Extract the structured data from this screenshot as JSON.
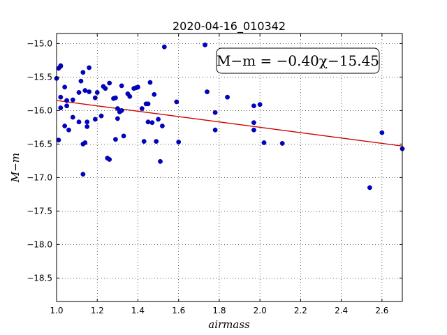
{
  "chart_data": {
    "type": "scatter",
    "title": "2020-04-16_010342",
    "xlabel": "airmass",
    "ylabel": "M−m",
    "xlim": [
      1.0,
      2.7
    ],
    "ylim": [
      -18.85,
      -14.85
    ],
    "xticks": [
      1.0,
      1.2,
      1.4,
      1.6,
      1.8,
      2.0,
      2.2,
      2.4,
      2.6
    ],
    "xtick_labels": [
      "1.0",
      "1.2",
      "1.4",
      "1.6",
      "1.8",
      "2.0",
      "2.2",
      "2.4",
      "2.6"
    ],
    "yticks": [
      -15.0,
      -15.5,
      -16.0,
      -16.5,
      -17.0,
      -17.5,
      -18.0,
      -18.5
    ],
    "ytick_labels": [
      "−15.0",
      "−15.5",
      "−16.0",
      "−16.5",
      "−17.0",
      "−17.5",
      "−18.0",
      "−18.5"
    ],
    "grid": true,
    "annotation": "M−m = −0.40χ−15.45",
    "fit": {
      "slope": -0.4,
      "intercept": -15.45,
      "color": "#cc0000"
    },
    "point_color": "#0000cc",
    "points": [
      [
        1.0,
        -15.52
      ],
      [
        1.01,
        -15.37
      ],
      [
        1.01,
        -16.44
      ],
      [
        1.02,
        -15.34
      ],
      [
        1.02,
        -15.33
      ],
      [
        1.02,
        -15.8
      ],
      [
        1.02,
        -15.96
      ],
      [
        1.04,
        -15.65
      ],
      [
        1.04,
        -16.23
      ],
      [
        1.05,
        -15.85
      ],
      [
        1.05,
        -15.93
      ],
      [
        1.06,
        -16.29
      ],
      [
        1.08,
        -15.84
      ],
      [
        1.08,
        -16.1
      ],
      [
        1.11,
        -15.73
      ],
      [
        1.11,
        -16.17
      ],
      [
        1.12,
        -15.56
      ],
      [
        1.13,
        -15.43
      ],
      [
        1.13,
        -16.5
      ],
      [
        1.13,
        -16.95
      ],
      [
        1.14,
        -15.7
      ],
      [
        1.14,
        -16.48
      ],
      [
        1.15,
        -16.17
      ],
      [
        1.15,
        -16.24
      ],
      [
        1.16,
        -15.36
      ],
      [
        1.16,
        -15.72
      ],
      [
        1.19,
        -15.81
      ],
      [
        1.19,
        -16.13
      ],
      [
        1.2,
        -15.73
      ],
      [
        1.22,
        -16.08
      ],
      [
        1.23,
        -15.64
      ],
      [
        1.24,
        -15.67
      ],
      [
        1.25,
        -16.71
      ],
      [
        1.26,
        -15.59
      ],
      [
        1.26,
        -16.73
      ],
      [
        1.28,
        -15.82
      ],
      [
        1.29,
        -15.81
      ],
      [
        1.29,
        -16.43
      ],
      [
        1.3,
        -16.12
      ],
      [
        1.3,
        -15.97
      ],
      [
        1.31,
        -16.02
      ],
      [
        1.32,
        -16.0
      ],
      [
        1.32,
        -15.63
      ],
      [
        1.33,
        -16.38
      ],
      [
        1.35,
        -15.75
      ],
      [
        1.36,
        -15.79
      ],
      [
        1.38,
        -15.67
      ],
      [
        1.39,
        -15.66
      ],
      [
        1.4,
        -15.65
      ],
      [
        1.42,
        -15.97
      ],
      [
        1.43,
        -16.46
      ],
      [
        1.44,
        -15.9
      ],
      [
        1.45,
        -15.9
      ],
      [
        1.45,
        -16.17
      ],
      [
        1.46,
        -15.58
      ],
      [
        1.47,
        -16.18
      ],
      [
        1.48,
        -15.76
      ],
      [
        1.49,
        -16.46
      ],
      [
        1.5,
        -16.13
      ],
      [
        1.51,
        -16.76
      ],
      [
        1.52,
        -16.23
      ],
      [
        1.53,
        -15.05
      ],
      [
        1.59,
        -15.87
      ],
      [
        1.6,
        -16.47
      ],
      [
        1.73,
        -15.02
      ],
      [
        1.74,
        -15.72
      ],
      [
        1.78,
        -16.03
      ],
      [
        1.78,
        -16.29
      ],
      [
        1.84,
        -15.8
      ],
      [
        1.97,
        -15.93
      ],
      [
        1.97,
        -16.18
      ],
      [
        1.97,
        -16.29
      ],
      [
        2.0,
        -15.91
      ],
      [
        2.02,
        -16.48
      ],
      [
        2.11,
        -16.49
      ],
      [
        2.54,
        -17.15
      ],
      [
        2.6,
        -16.33
      ],
      [
        2.7,
        -16.57
      ]
    ]
  }
}
